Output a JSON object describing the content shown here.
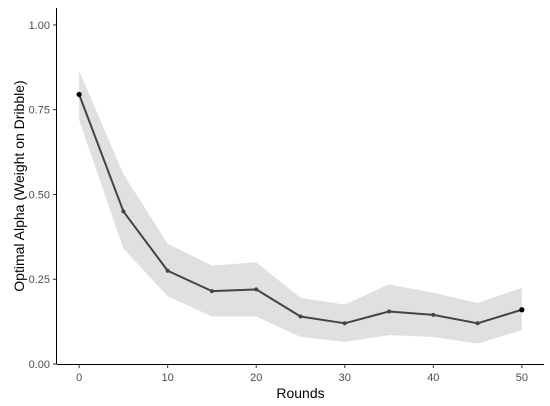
{
  "chart_data": {
    "type": "line",
    "xlabel": "Rounds",
    "ylabel": "Optimal Alpha (Weight on Dribble)",
    "xlim": [
      -2.5,
      52.5
    ],
    "ylim": [
      0,
      1.05
    ],
    "x_ticks": [
      0,
      10,
      20,
      30,
      40,
      50
    ],
    "y_ticks": [
      0.0,
      0.25,
      0.5,
      0.75,
      1.0
    ],
    "x_tick_labels": [
      "0",
      "10",
      "20",
      "30",
      "40",
      "50"
    ],
    "y_tick_labels": [
      "0.00",
      "0.25",
      "0.50",
      "0.75",
      "1.00"
    ],
    "grid": false,
    "legend": "none",
    "series": [
      {
        "x": [
          0,
          5,
          10,
          15,
          20,
          25,
          30,
          35,
          40,
          45,
          50
        ],
        "y": [
          0.795,
          0.45,
          0.275,
          0.215,
          0.22,
          0.14,
          0.12,
          0.155,
          0.145,
          0.12,
          0.16
        ],
        "lower": [
          0.72,
          0.34,
          0.2,
          0.14,
          0.14,
          0.08,
          0.065,
          0.085,
          0.08,
          0.06,
          0.1
        ],
        "upper": [
          0.865,
          0.56,
          0.355,
          0.29,
          0.3,
          0.195,
          0.175,
          0.235,
          0.21,
          0.18,
          0.225
        ],
        "line_color": "#444444",
        "band_color": "#e0e0e0"
      }
    ]
  }
}
